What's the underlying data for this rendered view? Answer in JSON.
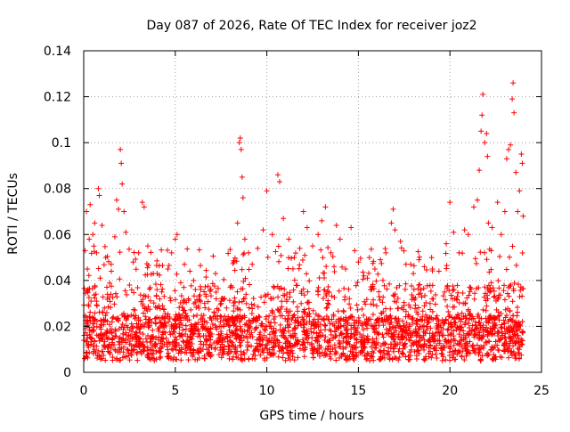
{
  "chart_data": {
    "type": "scatter",
    "title": "Day 087 of 2026, Rate Of TEC Index for receiver joz2",
    "xlabel": "GPS time / hours",
    "ylabel": "ROTI / TECUs",
    "xlim": [
      0,
      25
    ],
    "ylim": [
      0,
      0.14
    ],
    "xticks": [
      0,
      5,
      10,
      15,
      20,
      25
    ],
    "xtick_labels": [
      "0",
      "5",
      "10",
      "15",
      "20",
      "25"
    ],
    "yticks": [
      0,
      0.02,
      0.04,
      0.06,
      0.08,
      0.1,
      0.12,
      0.14
    ],
    "ytick_labels": [
      "0",
      "0.02",
      "0.04",
      "0.06",
      "0.08",
      "0.1",
      "0.12",
      "0.14"
    ],
    "grid": true,
    "marker": "+",
    "series": [
      {
        "name": "ROTI",
        "color": "#ff0000",
        "x_range": [
          0,
          24
        ],
        "points": [
          [
            0.05,
            0.006
          ],
          [
            0.1,
            0.024
          ],
          [
            0.15,
            0.07
          ],
          [
            0.2,
            0.045
          ],
          [
            0.25,
            0.012
          ],
          [
            0.3,
            0.058
          ],
          [
            0.35,
            0.073
          ],
          [
            0.4,
            0.031
          ],
          [
            0.5,
            0.06
          ],
          [
            0.55,
            0.018
          ],
          [
            0.6,
            0.065
          ],
          [
            0.7,
            0.052
          ],
          [
            0.8,
            0.08
          ],
          [
            0.85,
            0.077
          ],
          [
            0.9,
            0.041
          ],
          [
            1.0,
            0.064
          ],
          [
            1.1,
            0.022
          ],
          [
            1.2,
            0.05
          ],
          [
            1.3,
            0.034
          ],
          [
            1.5,
            0.047
          ],
          [
            1.7,
            0.059
          ],
          [
            1.8,
            0.075
          ],
          [
            1.9,
            0.071
          ],
          [
            2.0,
            0.097
          ],
          [
            2.05,
            0.091
          ],
          [
            2.1,
            0.082
          ],
          [
            2.2,
            0.07
          ],
          [
            2.3,
            0.061
          ],
          [
            2.5,
            0.038
          ],
          [
            2.7,
            0.048
          ],
          [
            3.0,
            0.052
          ],
          [
            3.2,
            0.074
          ],
          [
            3.3,
            0.072
          ],
          [
            3.5,
            0.055
          ],
          [
            3.8,
            0.043
          ],
          [
            4.0,
            0.036
          ],
          [
            4.3,
            0.029
          ],
          [
            4.6,
            0.045
          ],
          [
            4.8,
            0.052
          ],
          [
            5.0,
            0.058
          ],
          [
            5.1,
            0.06
          ],
          [
            5.3,
            0.039
          ],
          [
            5.5,
            0.047
          ],
          [
            5.8,
            0.044
          ],
          [
            6.0,
            0.04
          ],
          [
            6.3,
            0.033
          ],
          [
            6.6,
            0.03
          ],
          [
            6.9,
            0.036
          ],
          [
            7.2,
            0.043
          ],
          [
            7.5,
            0.031
          ],
          [
            7.8,
            0.028
          ],
          [
            8.0,
            0.037
          ],
          [
            8.2,
            0.048
          ],
          [
            8.4,
            0.065
          ],
          [
            8.5,
            0.1
          ],
          [
            8.55,
            0.102
          ],
          [
            8.6,
            0.097
          ],
          [
            8.65,
            0.085
          ],
          [
            8.7,
            0.076
          ],
          [
            8.8,
            0.058
          ],
          [
            9.0,
            0.052
          ],
          [
            9.2,
            0.047
          ],
          [
            9.5,
            0.054
          ],
          [
            9.8,
            0.062
          ],
          [
            10.0,
            0.079
          ],
          [
            10.3,
            0.06
          ],
          [
            10.6,
            0.086
          ],
          [
            10.7,
            0.083
          ],
          [
            10.9,
            0.067
          ],
          [
            11.2,
            0.058
          ],
          [
            11.5,
            0.05
          ],
          [
            11.8,
            0.054
          ],
          [
            12.0,
            0.07
          ],
          [
            12.2,
            0.063
          ],
          [
            12.5,
            0.055
          ],
          [
            12.8,
            0.06
          ],
          [
            13.0,
            0.066
          ],
          [
            13.2,
            0.072
          ],
          [
            13.5,
            0.052
          ],
          [
            13.8,
            0.064
          ],
          [
            14.0,
            0.058
          ],
          [
            14.3,
            0.045
          ],
          [
            14.6,
            0.063
          ],
          [
            14.8,
            0.053
          ],
          [
            15.0,
            0.048
          ],
          [
            15.3,
            0.042
          ],
          [
            15.6,
            0.05
          ],
          [
            15.9,
            0.045
          ],
          [
            16.2,
            0.049
          ],
          [
            16.5,
            0.052
          ],
          [
            16.8,
            0.065
          ],
          [
            16.9,
            0.071
          ],
          [
            17.0,
            0.062
          ],
          [
            17.3,
            0.057
          ],
          [
            17.6,
            0.047
          ],
          [
            18.0,
            0.043
          ],
          [
            18.3,
            0.038
          ],
          [
            18.6,
            0.046
          ],
          [
            19.0,
            0.05
          ],
          [
            19.4,
            0.044
          ],
          [
            19.8,
            0.056
          ],
          [
            20.0,
            0.074
          ],
          [
            20.2,
            0.061
          ],
          [
            20.5,
            0.052
          ],
          [
            20.8,
            0.062
          ],
          [
            21.0,
            0.06
          ],
          [
            21.3,
            0.072
          ],
          [
            21.5,
            0.075
          ],
          [
            21.6,
            0.088
          ],
          [
            21.7,
            0.105
          ],
          [
            21.75,
            0.112
          ],
          [
            21.8,
            0.121
          ],
          [
            21.9,
            0.1
          ],
          [
            22.0,
            0.104
          ],
          [
            22.05,
            0.094
          ],
          [
            22.1,
            0.065
          ],
          [
            22.3,
            0.063
          ],
          [
            22.6,
            0.074
          ],
          [
            22.8,
            0.06
          ],
          [
            23.0,
            0.07
          ],
          [
            23.1,
            0.093
          ],
          [
            23.2,
            0.097
          ],
          [
            23.3,
            0.099
          ],
          [
            23.4,
            0.119
          ],
          [
            23.45,
            0.126
          ],
          [
            23.5,
            0.113
          ],
          [
            23.6,
            0.087
          ],
          [
            23.7,
            0.07
          ],
          [
            23.8,
            0.079
          ],
          [
            23.9,
            0.095
          ],
          [
            23.95,
            0.091
          ],
          [
            24.0,
            0.068
          ]
        ]
      }
    ]
  }
}
